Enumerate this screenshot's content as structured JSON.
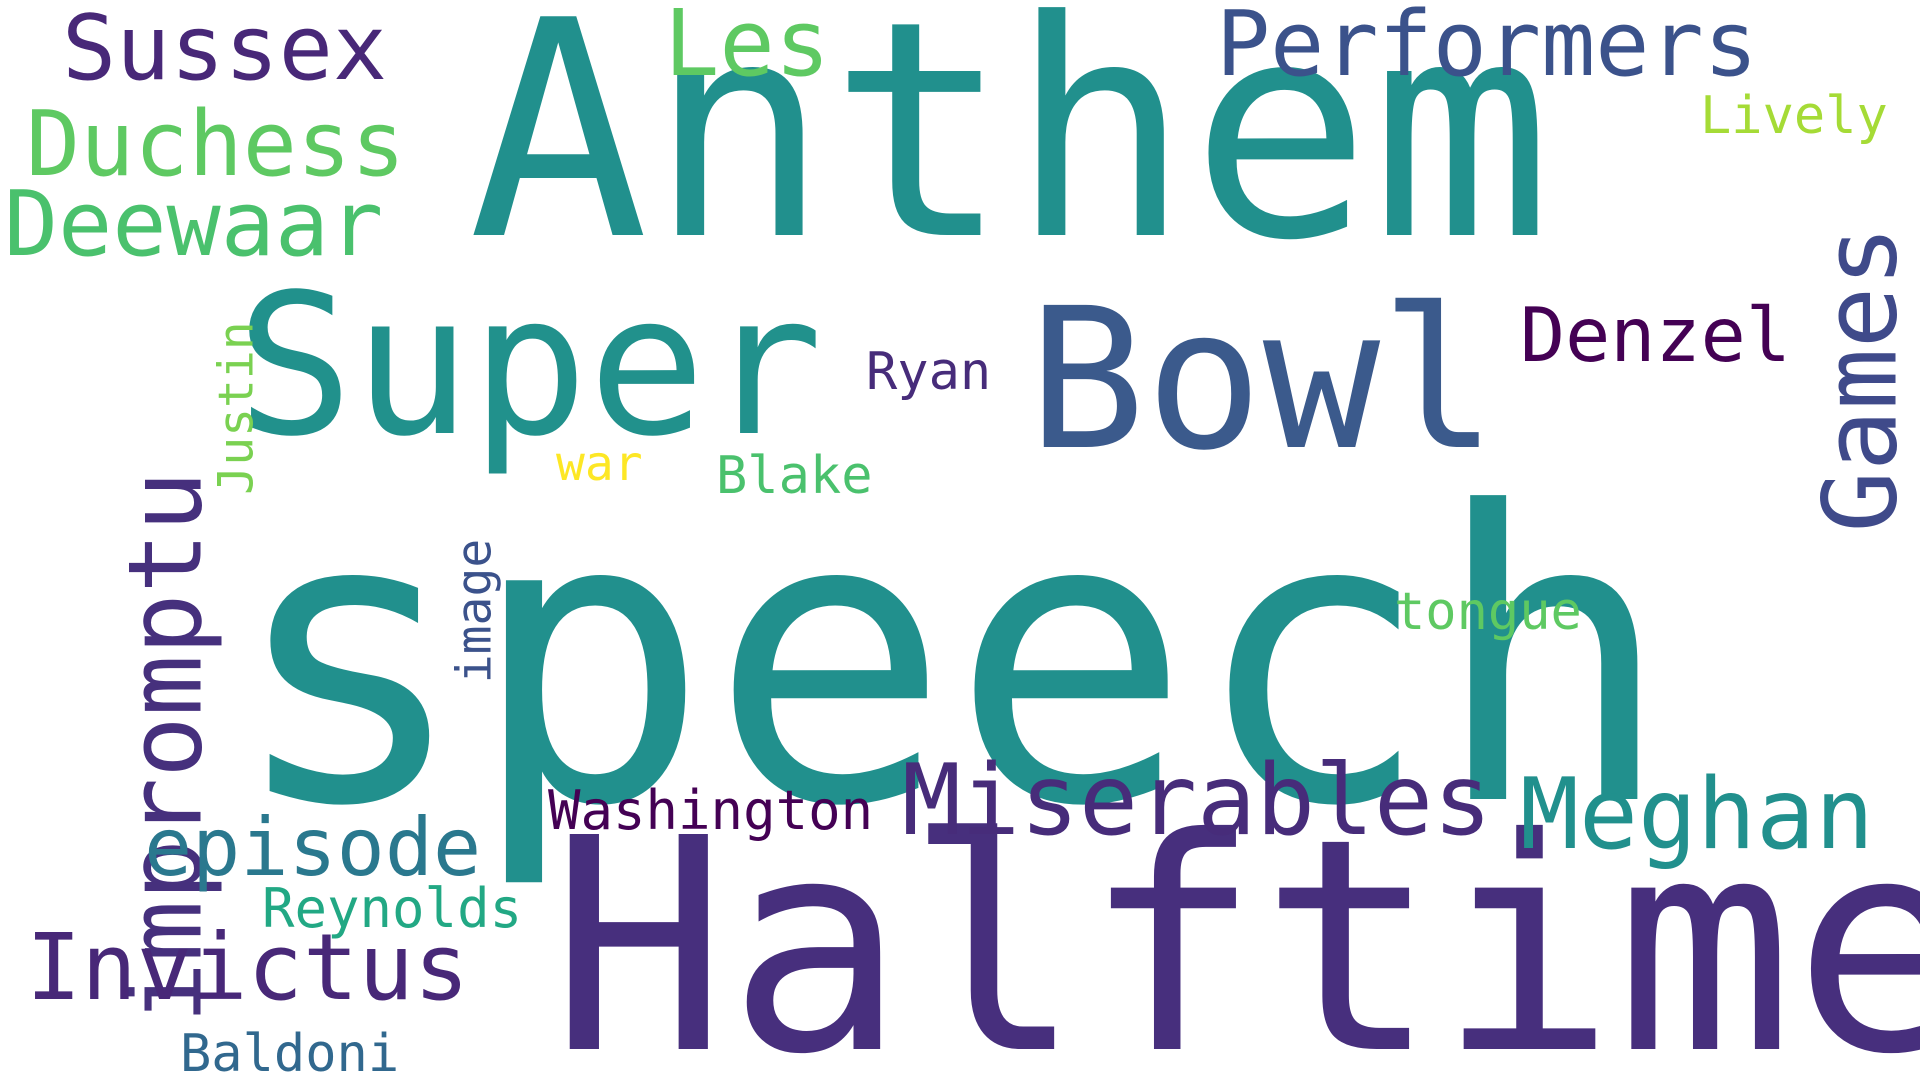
{
  "words": {
    "speech": "speech",
    "halftime": "Halftime",
    "anthem": "Anthem",
    "super": "Super",
    "bowl": "Bowl",
    "impromptu": "impromptu",
    "games": "Games",
    "miserables": "Miserables",
    "meghan": "Meghan",
    "performers": "Performers",
    "sussex": "Sussex",
    "duchess": "Duchess",
    "deewaar": "Deewaar",
    "les": "Les",
    "invictus": "Invictus",
    "episode": "episode",
    "denzel": "Denzel",
    "reynolds": "Reynolds",
    "washington": "Washington",
    "baldoni": "Baldoni",
    "ryan": "Ryan",
    "blake": "Blake",
    "tongue": "tongue",
    "lively": "Lively",
    "war": "war",
    "justin": "Justin",
    "image": "image"
  },
  "colors": {
    "speech": "#21908d",
    "halftime": "#472f7d",
    "anthem": "#21908d",
    "super": "#21918c",
    "bowl": "#3b5a8c",
    "impromptu": "#46307d",
    "games": "#3f4a8a",
    "miserables": "#472c7a",
    "meghan": "#21908d",
    "performers": "#3b528b",
    "sussex": "#482878",
    "duchess": "#5ec962",
    "deewaar": "#4ac16d",
    "les": "#5ec962",
    "invictus": "#482878",
    "episode": "#2a788e",
    "denzel": "#440154",
    "reynolds": "#22a884",
    "washington": "#440154",
    "baldoni": "#31688e",
    "ryan": "#472c7a",
    "blake": "#4ac16d",
    "tongue": "#5ec962",
    "lively": "#a5db36",
    "war": "#fde725",
    "justin": "#7ad151",
    "image": "#3b528b"
  }
}
